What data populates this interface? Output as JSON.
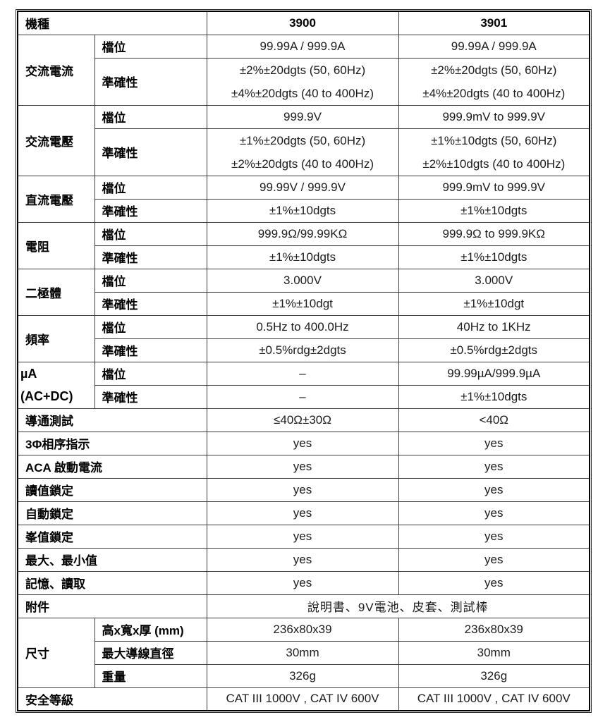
{
  "header": {
    "model_label": "機種",
    "model_a": "3900",
    "model_b": "3901"
  },
  "row_labels": {
    "range": "檔位",
    "accuracy": "準確性"
  },
  "sections": {
    "ac_current": {
      "name": "交流電流",
      "range_a": "99.99A / 999.9A",
      "range_b": "99.99A / 999.9A",
      "acc_a": [
        "±2%±20dgts (50, 60Hz)",
        "±4%±20dgts (40 to 400Hz)"
      ],
      "acc_b": [
        "±2%±20dgts (50, 60Hz)",
        "±4%±20dgts (40 to 400Hz)"
      ]
    },
    "ac_voltage": {
      "name": "交流電壓",
      "range_a": "999.9V",
      "range_b": "999.9mV to 999.9V",
      "acc_a": [
        "±1%±20dgts (50, 60Hz)",
        "±2%±20dgts (40 to 400Hz)"
      ],
      "acc_b": [
        "±1%±10dgts (50, 60Hz)",
        "±2%±10dgts (40 to 400Hz)"
      ]
    },
    "dc_voltage": {
      "name": "直流電壓",
      "range_a": "99.99V / 999.9V",
      "range_b": "999.9mV to 999.9V",
      "acc_a": "±1%±10dgts",
      "acc_b": "±1%±10dgts"
    },
    "resistance": {
      "name": "電阻",
      "range_a": "999.9Ω/99.99KΩ",
      "range_b": "999.9Ω to 999.9KΩ",
      "acc_a": "±1%±10dgts",
      "acc_b": "±1%±10dgts"
    },
    "diode": {
      "name": "二極體",
      "range_a": "3.000V",
      "range_b": "3.000V",
      "acc_a": "±1%±10dgt",
      "acc_b": "±1%±10dgt"
    },
    "frequency": {
      "name": "頻率",
      "range_a": "0.5Hz to 400.0Hz",
      "range_b": "40Hz to 1KHz",
      "acc_a": "±0.5%rdg±2dgts",
      "acc_b": "±0.5%rdg±2dgts"
    },
    "micro_amp": {
      "name_line1": "µA",
      "name_line2": "(AC+DC)",
      "range_a": "–",
      "range_b": "99.99µA/999.9µA",
      "acc_a": "–",
      "acc_b": "±1%±10dgts"
    }
  },
  "feature_rows": [
    {
      "label": "導通測試",
      "a": "≤40Ω±30Ω",
      "b": "<40Ω"
    },
    {
      "label": "3Φ相序指示",
      "a": "yes",
      "b": "yes"
    },
    {
      "label": "ACA 啟動電流",
      "a": "yes",
      "b": "yes"
    },
    {
      "label": "讀值鎖定",
      "a": "yes",
      "b": "yes"
    },
    {
      "label": "自動鎖定",
      "a": "yes",
      "b": "yes"
    },
    {
      "label": "峯值鎖定",
      "a": "yes",
      "b": "yes"
    },
    {
      "label": "最大、最小值",
      "a": "yes",
      "b": "yes"
    },
    {
      "label": "記憶、讀取",
      "a": "yes",
      "b": "yes"
    }
  ],
  "accessories": {
    "label": "附件",
    "value": "說明書、9V電池、皮套、測試棒"
  },
  "dimensions": {
    "name": "尺寸",
    "rows": [
      {
        "label": "高x寬x厚 (mm)",
        "a": "236x80x39",
        "b": "236x80x39"
      },
      {
        "label": "最大導線直徑",
        "a": "30mm",
        "b": "30mm"
      },
      {
        "label": "重量",
        "a": "326g",
        "b": "326g"
      }
    ]
  },
  "safety": {
    "label": "安全等級",
    "a": "CAT III 1000V , CAT IV 600V",
    "b": "CAT III 1000V , CAT IV 600V"
  }
}
